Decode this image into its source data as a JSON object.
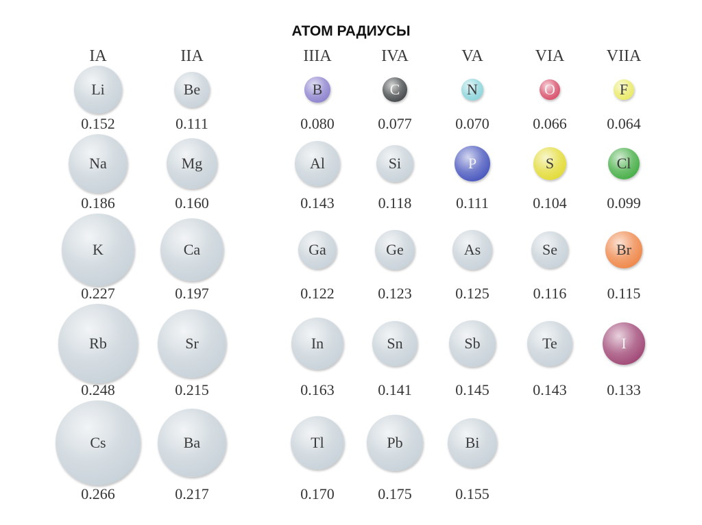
{
  "title": "АТОМ РАДИУСЫ",
  "groups": [
    "IA",
    "IIA",
    "IIIA",
    "IVA",
    "VA",
    "VIA",
    "VIIA"
  ],
  "colors": {
    "gray": "#c9d3da",
    "B": "#8f86cf",
    "C": "#4a4d4f",
    "N": "#8fd6dc",
    "O": "#d9546e",
    "F": "#eaea6a",
    "P": "#4d5bbf",
    "S": "#e3dc3c",
    "Cl": "#4ab04a",
    "Br": "#ef8a4e",
    "I": "#a24c79"
  },
  "chart_data": {
    "type": "table",
    "columns": [
      "IA",
      "IIA",
      "IIIA",
      "IVA",
      "VA",
      "VIA",
      "VIIA"
    ],
    "rows": [
      [
        {
          "symbol": "Li",
          "radius": "0.152"
        },
        {
          "symbol": "Be",
          "radius": "0.111"
        },
        {
          "symbol": "B",
          "radius": "0.080"
        },
        {
          "symbol": "C",
          "radius": "0.077"
        },
        {
          "symbol": "N",
          "radius": "0.070"
        },
        {
          "symbol": "O",
          "radius": "0.066"
        },
        {
          "symbol": "F",
          "radius": "0.064"
        }
      ],
      [
        {
          "symbol": "Na",
          "radius": "0.186"
        },
        {
          "symbol": "Mg",
          "radius": "0.160"
        },
        {
          "symbol": "Al",
          "radius": "0.143"
        },
        {
          "symbol": "Si",
          "radius": "0.118"
        },
        {
          "symbol": "P",
          "radius": "0.111"
        },
        {
          "symbol": "S",
          "radius": "0.104"
        },
        {
          "symbol": "Cl",
          "radius": "0.099"
        }
      ],
      [
        {
          "symbol": "K",
          "radius": "0.227"
        },
        {
          "symbol": "Ca",
          "radius": "0.197"
        },
        {
          "symbol": "Ga",
          "radius": "0.122"
        },
        {
          "symbol": "Ge",
          "radius": "0.123"
        },
        {
          "symbol": "As",
          "radius": "0.125"
        },
        {
          "symbol": "Se",
          "radius": "0.116"
        },
        {
          "symbol": "Br",
          "radius": "0.115"
        }
      ],
      [
        {
          "symbol": "Rb",
          "radius": "0.248"
        },
        {
          "symbol": "Sr",
          "radius": "0.215"
        },
        {
          "symbol": "In",
          "radius": "0.163"
        },
        {
          "symbol": "Sn",
          "radius": "0.141"
        },
        {
          "symbol": "Sb",
          "radius": "0.145"
        },
        {
          "symbol": "Te",
          "radius": "0.143"
        },
        {
          "symbol": "I",
          "radius": "0.133"
        }
      ],
      [
        {
          "symbol": "Cs",
          "radius": "0.266"
        },
        {
          "symbol": "Ba",
          "radius": "0.217"
        },
        {
          "symbol": "Tl",
          "radius": "0.170"
        },
        {
          "symbol": "Pb",
          "radius": "0.175"
        },
        {
          "symbol": "Bi",
          "radius": "0.155"
        },
        null,
        null
      ]
    ]
  }
}
